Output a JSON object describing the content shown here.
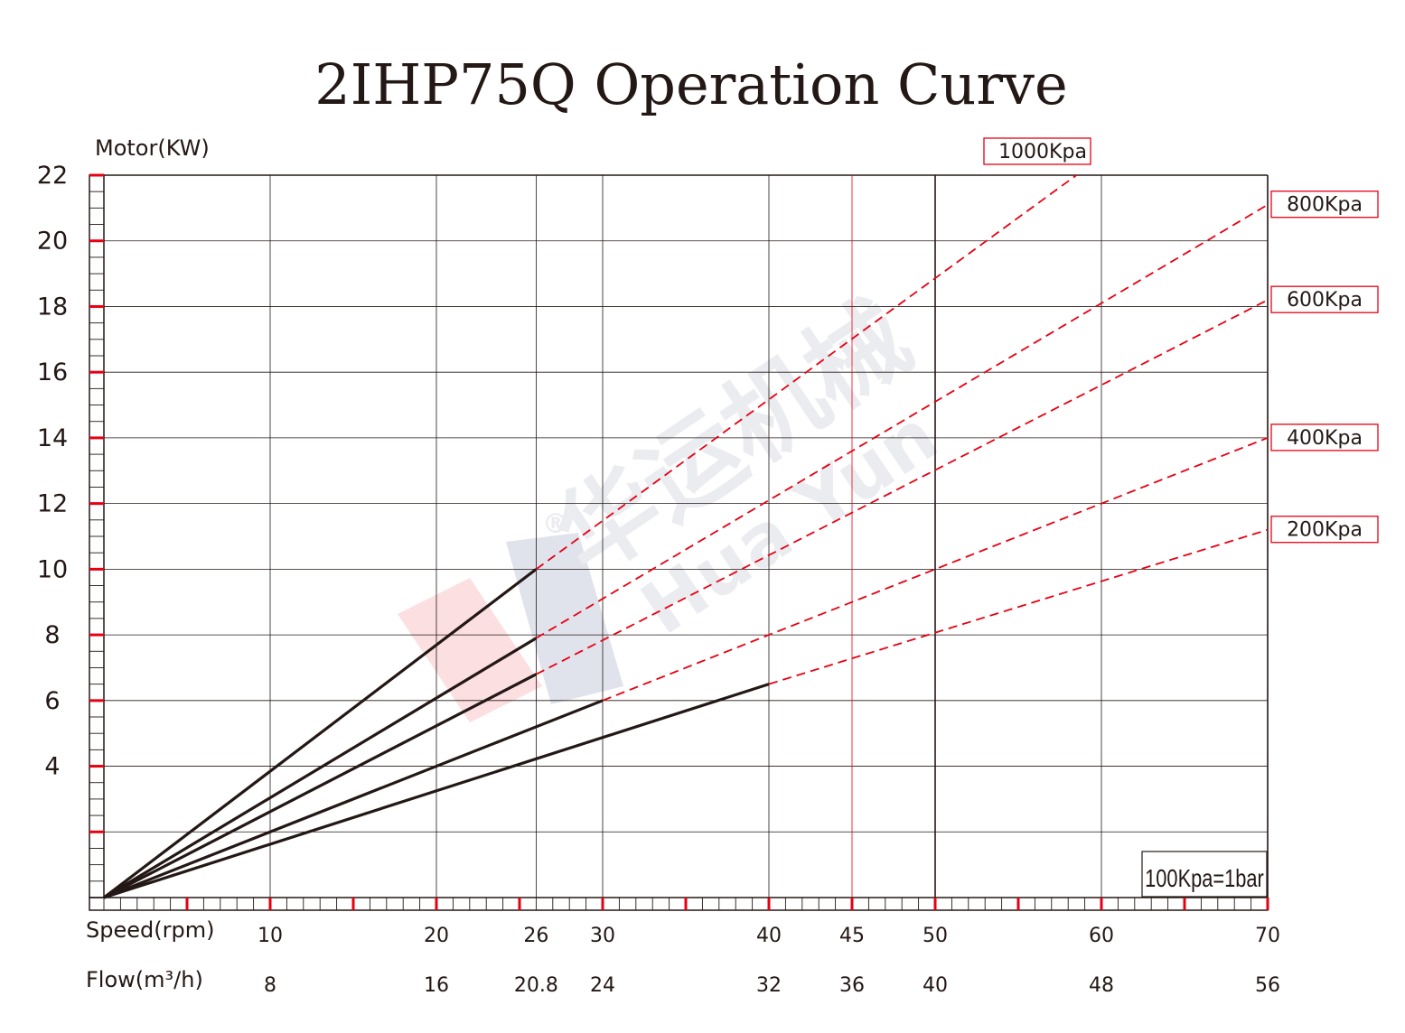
{
  "chart_data": {
    "type": "line",
    "title": "2IHP75Q Operation Curve",
    "ylabel": "Motor(KW)",
    "xlabel": "Speed(rpm)",
    "x2label": "Flow(m³/h)",
    "ylim": [
      0,
      22
    ],
    "xlim": [
      0,
      70
    ],
    "yticks": [
      "22",
      "20",
      "18",
      "16",
      "14",
      "12",
      "10",
      "8",
      "6",
      "4"
    ],
    "ytick_values": [
      22,
      20,
      18,
      16,
      14,
      12,
      10,
      8,
      6,
      4
    ],
    "xticks": [
      "10",
      "20",
      "26",
      "30",
      "40",
      "45",
      "50",
      "60",
      "70"
    ],
    "xtick_values": [
      10,
      20,
      26,
      30,
      40,
      45,
      50,
      60,
      70
    ],
    "flow_ticks": [
      "8",
      "16",
      "20.8",
      "24",
      "32",
      "36",
      "40",
      "48",
      "56"
    ],
    "grid": true,
    "colors": {
      "solid": "#231815",
      "dashed": "#e60012",
      "axis": "#231815",
      "accent": "#e60012"
    },
    "series": [
      {
        "name": "1000Kpa",
        "solid": [
          [
            0,
            0
          ],
          [
            26,
            10
          ]
        ],
        "dashed": [
          [
            26,
            10
          ],
          [
            58.5,
            22
          ]
        ]
      },
      {
        "name": "800Kpa",
        "solid": [
          [
            0,
            0
          ],
          [
            26,
            7.9
          ]
        ],
        "dashed": [
          [
            26,
            7.9
          ],
          [
            70,
            21.1
          ]
        ]
      },
      {
        "name": "600Kpa",
        "solid": [
          [
            0,
            0
          ],
          [
            26,
            6.8
          ]
        ],
        "dashed": [
          [
            26,
            6.8
          ],
          [
            70,
            18.2
          ]
        ]
      },
      {
        "name": "400Kpa",
        "solid": [
          [
            0,
            0
          ],
          [
            30,
            6.0
          ]
        ],
        "dashed": [
          [
            30,
            6.0
          ],
          [
            70,
            14.0
          ]
        ]
      },
      {
        "name": "200Kpa",
        "solid": [
          [
            0,
            0
          ],
          [
            40,
            6.5
          ]
        ],
        "dashed": [
          [
            40,
            6.5
          ],
          [
            70,
            11.2
          ]
        ]
      }
    ],
    "note": "100Kpa=1bar"
  },
  "watermark": {
    "brand_cn": "华运机械",
    "brand_en": "Hua Yun",
    "mark": "®"
  }
}
